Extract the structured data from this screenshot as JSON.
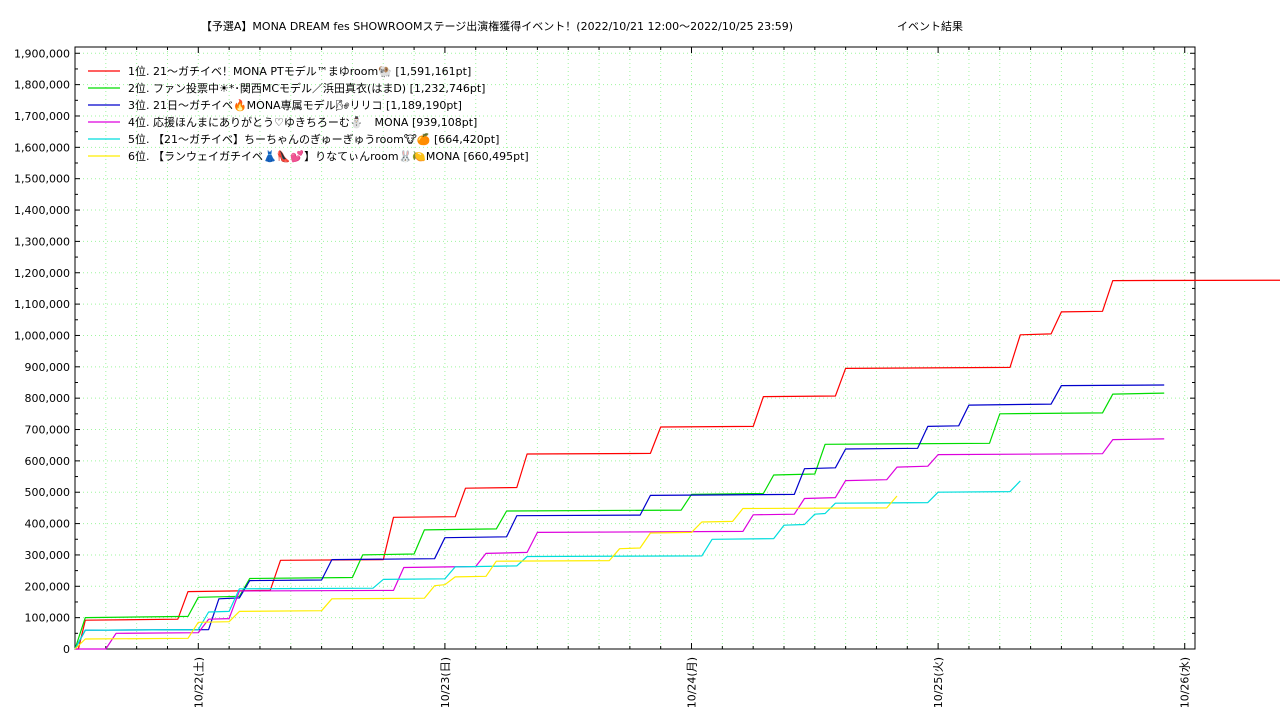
{
  "chart_data": {
    "type": "line",
    "title": "【予選A】MONA DREAM fes SHOWROOMステージ出演権獲得イベント！(2022/10/21 12:00〜2022/10/25 23:59)",
    "subtitle": "イベント結果",
    "xlabel": "",
    "ylabel": "",
    "x_ticks": [
      "10/22(土)",
      "10/23(日)",
      "10/24(月)",
      "10/25(火)",
      "10/26(水)"
    ],
    "xlim": [
      "2022/10/21 12:00",
      "2022/10/26 01:00"
    ],
    "ylim": [
      0,
      1920000
    ],
    "y_ticks": [
      "0",
      "100,000",
      "200,000",
      "300,000",
      "400,000",
      "500,000",
      "600,000",
      "700,000",
      "800,000",
      "900,000",
      "1,000,000",
      "1,100,000",
      "1,200,000",
      "1,300,000",
      "1,400,000",
      "1,500,000",
      "1,600,000",
      "1,700,000",
      "1,800,000",
      "1,900,000"
    ],
    "y_tick_values": [
      0,
      100000,
      200000,
      300000,
      400000,
      500000,
      600000,
      700000,
      800000,
      900000,
      1000000,
      1100000,
      1200000,
      1300000,
      1400000,
      1500000,
      1600000,
      1700000,
      1800000,
      1900000
    ],
    "grid": true,
    "legend_position": "top-left",
    "series": [
      {
        "name": "1位. 21〜ガチイベ！MONA PTモデル™まゆroom🐏 [1,591,161pt]",
        "color": "#ff0000",
        "points": [
          [
            "2022/10/21 12:00",
            0
          ],
          [
            "2022/10/21 12:20",
            0
          ],
          [
            "2022/10/21 13:00",
            92000
          ],
          [
            "2022/10/21 22:00",
            95000
          ],
          [
            "2022/10/21 23:00",
            183000
          ],
          [
            "2022/10/22 07:00",
            187000
          ],
          [
            "2022/10/22 08:00",
            283000
          ],
          [
            "2022/10/22 18:00",
            285000
          ],
          [
            "2022/10/22 19:00",
            420000
          ],
          [
            "2022/10/23 01:00",
            422000
          ],
          [
            "2022/10/23 02:00",
            513000
          ],
          [
            "2022/10/23 07:00",
            515000
          ],
          [
            "2022/10/23 08:00",
            622000
          ],
          [
            "2022/10/23 20:00",
            624000
          ],
          [
            "2022/10/23 21:00",
            708000
          ],
          [
            "2022/10/24 06:00",
            710000
          ],
          [
            "2022/10/24 07:00",
            805000
          ],
          [
            "2022/10/24 14:00",
            807000
          ],
          [
            "2022/10/24 15:00",
            895000
          ],
          [
            "2022/10/25 07:00",
            898000
          ],
          [
            "2022/10/25 08:00",
            1002000
          ],
          [
            "2022/10/25 11:00",
            1005000
          ],
          [
            "2022/10/25 12:00",
            1075000
          ],
          [
            "2022/10/25 16:00",
            1077000
          ],
          [
            "2022/10/25 17:00",
            1175000
          ],
          [
            "2022/10/26 20:00",
            1177000
          ]
        ]
      },
      {
        "name": "2位. ファン投票中☀*･関西MCモデル／浜田真衣(はまD) [1,232,746pt]",
        "color": "#00dd00",
        "points": [
          [
            "2022/10/21 12:00",
            0
          ],
          [
            "2022/10/21 13:00",
            100000
          ],
          [
            "2022/10/21 23:00",
            104000
          ],
          [
            "2022/10/22 00:00",
            165000
          ],
          [
            "2022/10/22 04:00",
            168000
          ],
          [
            "2022/10/22 05:00",
            225000
          ],
          [
            "2022/10/22 15:00",
            228000
          ],
          [
            "2022/10/22 16:00",
            300000
          ],
          [
            "2022/10/22 21:00",
            303000
          ],
          [
            "2022/10/22 22:00",
            380000
          ],
          [
            "2022/10/23 05:00",
            383000
          ],
          [
            "2022/10/23 06:00",
            440000
          ],
          [
            "2022/10/23 23:00",
            443000
          ],
          [
            "2022/10/24 00:00",
            493000
          ],
          [
            "2022/10/24 07:00",
            496000
          ],
          [
            "2022/10/24 08:00",
            555000
          ],
          [
            "2022/10/24 12:00",
            558000
          ],
          [
            "2022/10/24 13:00",
            653000
          ],
          [
            "2022/10/25 05:00",
            656000
          ],
          [
            "2022/10/25 06:00",
            750000
          ],
          [
            "2022/10/25 16:00",
            753000
          ],
          [
            "2022/10/25 17:00",
            813000
          ],
          [
            "2022/10/25 22:00",
            816000
          ]
        ]
      },
      {
        "name": "3位. 21日〜ガチイベ🔥MONA専属モデル🌬リリコ [1,189,190pt]",
        "color": "#0000cc",
        "points": [
          [
            "2022/10/21 12:00",
            0
          ],
          [
            "2022/10/21 13:00",
            60000
          ],
          [
            "2022/10/22 01:00",
            62000
          ],
          [
            "2022/10/22 02:00",
            160000
          ],
          [
            "2022/10/22 04:00",
            163000
          ],
          [
            "2022/10/22 05:00",
            218000
          ],
          [
            "2022/10/22 12:00",
            220000
          ],
          [
            "2022/10/22 13:00",
            285000
          ],
          [
            "2022/10/22 23:00",
            288000
          ],
          [
            "2022/10/23 00:00",
            355000
          ],
          [
            "2022/10/23 06:00",
            358000
          ],
          [
            "2022/10/23 07:00",
            425000
          ],
          [
            "2022/10/23 19:00",
            427000
          ],
          [
            "2022/10/23 20:00",
            490000
          ],
          [
            "2022/10/24 10:00",
            493000
          ],
          [
            "2022/10/24 11:00",
            575000
          ],
          [
            "2022/10/24 14:00",
            578000
          ],
          [
            "2022/10/24 15:00",
            638000
          ],
          [
            "2022/10/24 22:00",
            640000
          ],
          [
            "2022/10/24 23:00",
            710000
          ],
          [
            "2022/10/25 02:00",
            712000
          ],
          [
            "2022/10/25 03:00",
            778000
          ],
          [
            "2022/10/25 11:00",
            781000
          ],
          [
            "2022/10/25 12:00",
            840000
          ],
          [
            "2022/10/25 22:00",
            842000
          ]
        ]
      },
      {
        "name": "4位. 応援ほんまにありがとう♡ゆきちろーむ⛄　MONA [939,108pt]",
        "color": "#dd00dd",
        "points": [
          [
            "2022/10/21 12:00",
            0
          ],
          [
            "2022/10/21 13:00",
            0
          ],
          [
            "2022/10/21 15:00",
            0
          ],
          [
            "2022/10/21 16:00",
            50000
          ],
          [
            "2022/10/22 00:00",
            52000
          ],
          [
            "2022/10/22 01:00",
            95000
          ],
          [
            "2022/10/22 03:00",
            97000
          ],
          [
            "2022/10/22 04:00",
            185000
          ],
          [
            "2022/10/22 19:00",
            187000
          ],
          [
            "2022/10/22 20:00",
            260000
          ],
          [
            "2022/10/23 03:00",
            263000
          ],
          [
            "2022/10/23 04:00",
            305000
          ],
          [
            "2022/10/23 08:00",
            308000
          ],
          [
            "2022/10/23 09:00",
            372000
          ],
          [
            "2022/10/24 05:00",
            375000
          ],
          [
            "2022/10/24 06:00",
            428000
          ],
          [
            "2022/10/24 10:00",
            430000
          ],
          [
            "2022/10/24 11:00",
            480000
          ],
          [
            "2022/10/24 14:00",
            483000
          ],
          [
            "2022/10/24 15:00",
            537000
          ],
          [
            "2022/10/24 19:00",
            540000
          ],
          [
            "2022/10/24 20:00",
            580000
          ],
          [
            "2022/10/24 23:00",
            583000
          ],
          [
            "2022/10/25 00:00",
            620000
          ],
          [
            "2022/10/25 16:00",
            623000
          ],
          [
            "2022/10/25 17:00",
            668000
          ],
          [
            "2022/10/25 22:00",
            670000
          ]
        ]
      },
      {
        "name": "5位. 【21〜ガチイベ】ちーちゃんのぎゅーぎゅうroom🐮🍊 [664,420pt]",
        "color": "#00dddd",
        "points": [
          [
            "2022/10/21 12:00",
            0
          ],
          [
            "2022/10/21 13:00",
            60000
          ],
          [
            "2022/10/22 00:00",
            62000
          ],
          [
            "2022/10/22 01:00",
            118000
          ],
          [
            "2022/10/22 03:00",
            120000
          ],
          [
            "2022/10/22 04:00",
            192000
          ],
          [
            "2022/10/22 17:00",
            194000
          ],
          [
            "2022/10/22 18:00",
            222000
          ],
          [
            "2022/10/23 00:00",
            224000
          ],
          [
            "2022/10/23 01:00",
            262000
          ],
          [
            "2022/10/23 07:00",
            265000
          ],
          [
            "2022/10/23 08:00",
            295000
          ],
          [
            "2022/10/24 01:00",
            297000
          ],
          [
            "2022/10/24 02:00",
            350000
          ],
          [
            "2022/10/24 08:00",
            352000
          ],
          [
            "2022/10/24 09:00",
            395000
          ],
          [
            "2022/10/24 11:00",
            397000
          ],
          [
            "2022/10/24 12:00",
            430000
          ],
          [
            "2022/10/24 13:00",
            432000
          ],
          [
            "2022/10/24 14:00",
            465000
          ],
          [
            "2022/10/24 23:00",
            467000
          ],
          [
            "2022/10/25 00:00",
            500000
          ],
          [
            "2022/10/25 07:00",
            502000
          ],
          [
            "2022/10/25 08:00",
            536000
          ]
        ]
      },
      {
        "name": "6位. 【ランウェイガチイベ👗👠💕】りなてぃんroom🐰🍋MONA [660,495pt]",
        "color": "#ffee00",
        "points": [
          [
            "2022/10/21 12:00",
            0
          ],
          [
            "2022/10/21 13:00",
            32000
          ],
          [
            "2022/10/21 23:00",
            34000
          ],
          [
            "2022/10/22 00:00",
            85000
          ],
          [
            "2022/10/22 03:00",
            87000
          ],
          [
            "2022/10/22 04:00",
            120000
          ],
          [
            "2022/10/22 12:00",
            122000
          ],
          [
            "2022/10/22 13:00",
            160000
          ],
          [
            "2022/10/22 22:00",
            162000
          ],
          [
            "2022/10/22 23:00",
            202000
          ],
          [
            "2022/10/23 00:00",
            205000
          ],
          [
            "2022/10/23 01:00",
            230000
          ],
          [
            "2022/10/23 04:00",
            232000
          ],
          [
            "2022/10/23 05:00",
            280000
          ],
          [
            "2022/10/23 16:00",
            282000
          ],
          [
            "2022/10/23 17:00",
            320000
          ],
          [
            "2022/10/23 19:00",
            322000
          ],
          [
            "2022/10/23 20:00",
            370000
          ],
          [
            "2022/10/24 00:00",
            372000
          ],
          [
            "2022/10/24 01:00",
            405000
          ],
          [
            "2022/10/24 04:00",
            407000
          ],
          [
            "2022/10/24 05:00",
            448000
          ],
          [
            "2022/10/24 19:00",
            450000
          ],
          [
            "2022/10/24 20:00",
            488000
          ]
        ]
      }
    ]
  }
}
